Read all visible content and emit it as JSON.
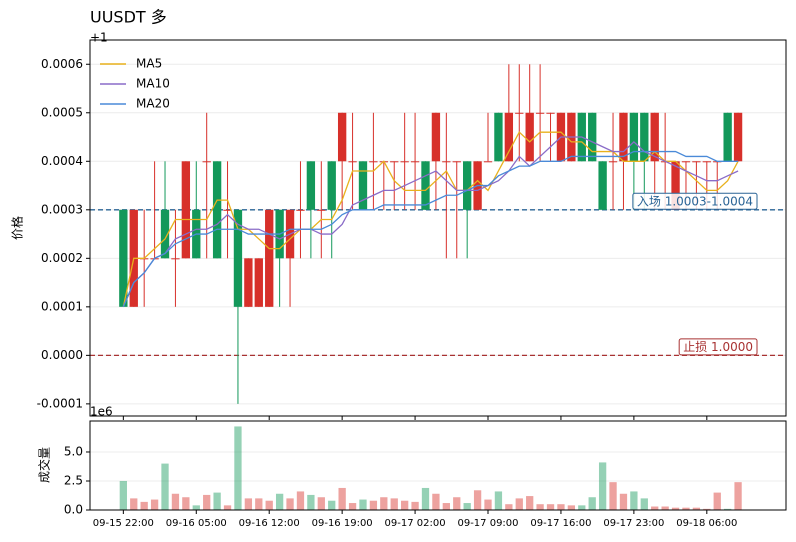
{
  "chart_data": {
    "type": "candlestick",
    "title": "UUSDT  多",
    "y_offset": "+1",
    "ylabel": "价格",
    "categories": [
      "09-15 22:00",
      null,
      null,
      null,
      null,
      null,
      null,
      "09-16 05:00",
      null,
      null,
      null,
      null,
      null,
      null,
      "09-16 12:00",
      null,
      null,
      null,
      null,
      null,
      null,
      "09-16 19:00",
      null,
      null,
      null,
      null,
      null,
      null,
      "09-17 02:00",
      null,
      null,
      null,
      null,
      null,
      null,
      "09-17 09:00",
      null,
      null,
      null,
      null,
      null,
      null,
      "09-17 16:00",
      null,
      null,
      null,
      null,
      null,
      null,
      "09-17 23:00",
      null,
      null,
      null,
      null,
      null,
      null,
      "09-18 06:00",
      null,
      null,
      null
    ],
    "open": [
      0.0003,
      0.0001,
      0.0002,
      0.0002,
      0.0003,
      0.0002,
      0.0002,
      0.0003,
      0.0004,
      0.0004,
      0.0003,
      0.0003,
      0.0001,
      0.0001,
      0.0001,
      0.0003,
      0.0002,
      0.0003,
      0.0004,
      0.0003,
      0.0004,
      0.0004,
      0.0004,
      0.0004,
      0.0004,
      0.0004,
      0.0004,
      0.0004,
      0.0004,
      0.0004,
      0.0004,
      0.0004,
      0.0004,
      0.0004,
      0.0003,
      0.0004,
      0.0005,
      0.0004,
      0.0005,
      0.0004,
      0.0005,
      0.0005,
      0.0004,
      0.0004,
      0.0005,
      0.0005,
      0.0004,
      0.0004,
      0.0004,
      0.0005,
      0.0005,
      0.0004,
      0.0004,
      0.0003,
      0.0004,
      0.0004,
      0.0004,
      0.0004,
      0.0005,
      0.0004
    ],
    "high": [
      0.0003,
      0.0003,
      0.0003,
      0.0004,
      0.0004,
      0.0003,
      0.0004,
      0.0004,
      0.0005,
      0.0004,
      0.0004,
      0.0003,
      0.0002,
      0.0002,
      0.0003,
      0.0003,
      0.0003,
      0.0004,
      0.0004,
      0.0004,
      0.0004,
      0.0005,
      0.0005,
      0.0004,
      0.0005,
      0.0004,
      0.0004,
      0.0005,
      0.0005,
      0.0004,
      0.0005,
      0.0005,
      0.0004,
      0.0004,
      0.0004,
      0.0005,
      0.0005,
      0.0006,
      0.0006,
      0.0006,
      0.0006,
      0.0005,
      0.0005,
      0.0005,
      0.0005,
      0.0005,
      0.0004,
      0.0005,
      0.0005,
      0.0005,
      0.0005,
      0.0005,
      0.0005,
      0.0004,
      0.0004,
      0.0004,
      0.0004,
      0.0004,
      0.0005,
      0.0005
    ],
    "low": [
      0.0001,
      0.0001,
      0.0001,
      0.0002,
      0.0002,
      0.0001,
      0.0002,
      0.0002,
      0.0002,
      0.0002,
      0.0002,
      -0.0001,
      0.0001,
      0.0001,
      0.0001,
      0.0001,
      0.0001,
      0.0002,
      0.0002,
      0.0002,
      0.0002,
      0.0003,
      0.0003,
      0.0003,
      0.0003,
      0.0003,
      0.0003,
      0.0003,
      0.0003,
      0.0003,
      0.0003,
      0.0002,
      0.0002,
      0.0002,
      0.0003,
      0.0004,
      0.0004,
      0.0004,
      0.0004,
      0.0004,
      0.0004,
      0.0004,
      0.0004,
      0.0004,
      0.0004,
      0.0004,
      0.0003,
      0.0003,
      0.0003,
      0.0003,
      0.0003,
      0.0003,
      0.0003,
      0.0003,
      0.0003,
      0.0003,
      0.0003,
      0.0003,
      0.0004,
      0.0004
    ],
    "close": [
      0.0001,
      0.0003,
      0.0002,
      0.0002,
      0.0002,
      0.0002,
      0.0004,
      0.0002,
      0.0004,
      0.0002,
      0.0003,
      0.0001,
      0.0002,
      0.0002,
      0.0003,
      0.0002,
      0.0003,
      0.0003,
      0.0003,
      0.0003,
      0.0003,
      0.0005,
      0.0004,
      0.0003,
      0.0004,
      0.0004,
      0.0004,
      0.0004,
      0.0004,
      0.0003,
      0.0005,
      0.0004,
      0.0004,
      0.0003,
      0.0004,
      0.0004,
      0.0004,
      0.0005,
      0.0005,
      0.0005,
      0.0005,
      0.0005,
      0.0005,
      0.0005,
      0.0004,
      0.0004,
      0.0003,
      0.0004,
      0.0005,
      0.0004,
      0.0004,
      0.0005,
      0.0004,
      0.0004,
      0.0004,
      0.0004,
      0.0004,
      0.0004,
      0.0004,
      0.0005
    ],
    "up_color": "#d7302a",
    "down_color": "#13985a",
    "series": [
      {
        "name": "MA5",
        "color": "#e8b11d",
        "values": [
          0.0001,
          0.0002,
          0.0002,
          0.00022,
          0.00024,
          0.00028,
          0.00028,
          0.00028,
          0.00028,
          0.00032,
          0.00032,
          0.00026,
          0.00026,
          0.00024,
          0.00022,
          0.00022,
          0.00024,
          0.00026,
          0.00026,
          0.00028,
          0.00028,
          0.00032,
          0.00038,
          0.00038,
          0.00038,
          0.0004,
          0.00036,
          0.00034,
          0.00034,
          0.00034,
          0.00036,
          0.00038,
          0.00034,
          0.00034,
          0.00036,
          0.00034,
          0.00038,
          0.00042,
          0.00046,
          0.00044,
          0.00046,
          0.00046,
          0.00046,
          0.00044,
          0.00044,
          0.00042,
          0.00042,
          0.00042,
          0.0004,
          0.0004,
          0.0004,
          0.00042,
          0.0004,
          0.0004,
          0.00038,
          0.00036,
          0.00034,
          0.00034,
          0.00036,
          0.0004
        ]
      },
      {
        "name": "MA10",
        "color": "#8a6cc8",
        "values": [
          0.0001,
          0.00015,
          0.00017,
          0.0002,
          0.00021,
          0.00024,
          0.00025,
          0.00026,
          0.00026,
          0.00027,
          0.00029,
          0.00027,
          0.00026,
          0.00026,
          0.00025,
          0.00024,
          0.00025,
          0.00026,
          0.00026,
          0.00025,
          0.00025,
          0.00027,
          0.00031,
          0.00032,
          0.00033,
          0.00034,
          0.00034,
          0.00035,
          0.00036,
          0.00037,
          0.00038,
          0.00036,
          0.00034,
          0.00034,
          0.00034,
          0.00035,
          0.00036,
          0.00038,
          0.00041,
          0.00039,
          0.00041,
          0.00043,
          0.00045,
          0.00045,
          0.00045,
          0.00044,
          0.00043,
          0.00042,
          0.00042,
          0.00044,
          0.00042,
          0.00041,
          0.0004,
          0.00039,
          0.00038,
          0.00037,
          0.00036,
          0.00036,
          0.00037,
          0.00038
        ]
      },
      {
        "name": "MA20",
        "color": "#4a8ad8",
        "values": [
          0.0001,
          0.00015,
          0.00017,
          0.0002,
          0.00021,
          0.00023,
          0.00024,
          0.00025,
          0.00025,
          0.00026,
          0.00026,
          0.00026,
          0.00025,
          0.00025,
          0.00025,
          0.00025,
          0.00026,
          0.00026,
          0.00026,
          0.00026,
          0.00027,
          0.00029,
          0.0003,
          0.0003,
          0.0003,
          0.00031,
          0.00031,
          0.00031,
          0.00031,
          0.00031,
          0.00032,
          0.00033,
          0.00033,
          0.00034,
          0.00035,
          0.00035,
          0.00037,
          0.00038,
          0.00039,
          0.00039,
          0.0004,
          0.0004,
          0.0004,
          0.00041,
          0.00041,
          0.00041,
          0.00041,
          0.00041,
          0.00041,
          0.00042,
          0.00042,
          0.00042,
          0.00042,
          0.00042,
          0.00041,
          0.00041,
          0.00041,
          0.0004,
          0.0004,
          0.0004
        ]
      }
    ],
    "legend": "upper left",
    "ylim": [
      -0.000125,
      0.00065
    ],
    "yticks": [
      -0.0001,
      {
        "value": 0,
        "label": "0.0000"
      },
      0.0001,
      0.0002,
      0.0003,
      0.0004,
      0.0005,
      0.0006
    ],
    "grid": true,
    "hlines": [
      {
        "value": 0.0003,
        "label": "入场 1.0003-1.0004",
        "color": "#2a6496"
      },
      {
        "value": 0,
        "label": "止损 1.0000",
        "color": "#a83232"
      }
    ],
    "volume": {
      "ylabel": "成交量",
      "offset": "1e6",
      "values": [
        2.5,
        1.0,
        0.7,
        0.9,
        4.0,
        1.4,
        1.1,
        0.4,
        1.3,
        1.5,
        0.4,
        7.2,
        1.0,
        1.0,
        0.8,
        1.4,
        1.0,
        1.6,
        1.3,
        1.1,
        0.8,
        1.9,
        0.6,
        0.9,
        0.8,
        1.1,
        1.0,
        0.8,
        0.7,
        1.9,
        1.4,
        0.6,
        1.1,
        0.6,
        1.7,
        0.9,
        1.6,
        0.5,
        1.0,
        1.2,
        0.5,
        0.5,
        0.5,
        0.4,
        0.4,
        1.1,
        4.1,
        2.4,
        1.4,
        1.6,
        1.0,
        0.3,
        0.3,
        0.2,
        0.2,
        0.2,
        0.1,
        1.5,
        0.1,
        2.4
      ],
      "ylim": [
        0,
        7.67
      ],
      "yticks": [
        {
          "value": 0,
          "label": "0.0"
        },
        2.5,
        {
          "value": 5,
          "label": "5.0"
        }
      ]
    }
  }
}
